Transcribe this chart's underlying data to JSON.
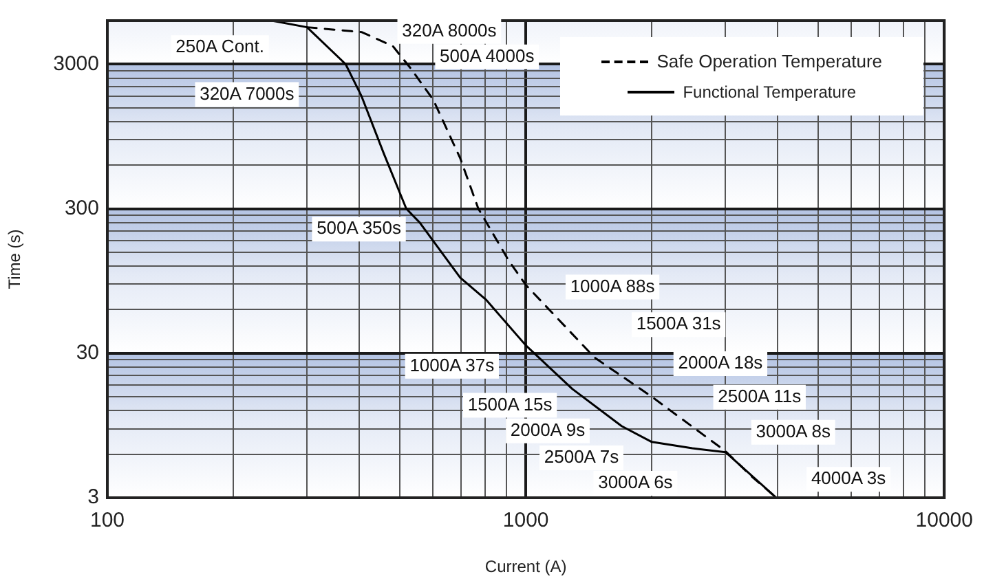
{
  "chart_data": {
    "type": "line",
    "xlabel": "Current (A)",
    "ylabel": "Time (s)",
    "log": "xy",
    "xlim": [
      100,
      10000
    ],
    "ylim": [
      3,
      6000
    ],
    "xticks": [
      100,
      {
        "value": 200,
        "label": null
      },
      {
        "value": 300,
        "label": null
      },
      {
        "value": 400,
        "label": null
      },
      {
        "value": 500,
        "label": null
      },
      {
        "value": 600,
        "label": null
      },
      {
        "value": 700,
        "label": null
      },
      {
        "value": 800,
        "label": null
      },
      {
        "value": 900,
        "label": null
      },
      1000,
      {
        "value": 2000,
        "label": null
      },
      {
        "value": 3000,
        "label": null
      },
      {
        "value": 4000,
        "label": null
      },
      {
        "value": 5000,
        "label": null
      },
      {
        "value": 6000,
        "label": null
      },
      {
        "value": 7000,
        "label": null
      },
      {
        "value": 8000,
        "label": null
      },
      {
        "value": 9000,
        "label": null
      },
      10000
    ],
    "yticks": [
      3,
      {
        "value": 6,
        "label": null
      },
      {
        "value": 9,
        "label": null
      },
      {
        "value": 12,
        "label": null
      },
      {
        "value": 15,
        "label": null
      },
      {
        "value": 18,
        "label": null
      },
      {
        "value": 21,
        "label": null
      },
      {
        "value": 24,
        "label": null
      },
      {
        "value": 27,
        "label": null
      },
      30,
      {
        "value": 60,
        "label": null
      },
      {
        "value": 90,
        "label": null
      },
      {
        "value": 120,
        "label": null
      },
      {
        "value": 150,
        "label": null
      },
      {
        "value": 180,
        "label": null
      },
      {
        "value": 210,
        "label": null
      },
      {
        "value": 240,
        "label": null
      },
      {
        "value": 270,
        "label": null
      },
      300,
      {
        "value": 600,
        "label": null
      },
      {
        "value": 900,
        "label": null
      },
      {
        "value": 1200,
        "label": null
      },
      {
        "value": 1500,
        "label": null
      },
      {
        "value": 1800,
        "label": null
      },
      {
        "value": 2100,
        "label": null
      },
      {
        "value": 2400,
        "label": null
      },
      {
        "value": 2700,
        "label": null
      },
      3000
    ],
    "grid": true,
    "legend": "top right",
    "marker": "none",
    "series": [
      {
        "name": "Safe Operation Temperature",
        "color": "#000000",
        "line_style": "dashed",
        "x": [
          300,
          405,
          481,
          531,
          601,
          697,
          770,
          912,
          1000,
          1460,
          2000,
          3000,
          3470,
          3970
        ],
        "values": [
          5400,
          5000,
          4000,
          2800,
          1700,
          670,
          300,
          130,
          89,
          28,
          15,
          6.3,
          4.2,
          3
        ]
      },
      {
        "name": "Functional Temperature",
        "color": "#000000",
        "line_style": "solid",
        "x": [
          247,
          300,
          371,
          405,
          458,
          518,
          558,
          697,
          805,
          1000,
          1291,
          1694,
          2000,
          2500,
          3000,
          3970
        ],
        "values": [
          6000,
          5400,
          3000,
          1800,
          720,
          300,
          240,
          100,
          70,
          34,
          17,
          9.4,
          7.3,
          6.6,
          6.2,
          3
        ]
      }
    ],
    "annotations": [
      "250A Cont.",
      "320A 7000s",
      "320A 8000s",
      "500A 4000s",
      "500A 350s",
      "1000A 88s",
      "1500A 31s",
      "2000A 18s",
      "2500A 11s",
      "3000A 8s",
      "4000A 3s",
      "1000A 37s",
      "1500A 15s",
      "2000A 9s",
      "2500A 7s",
      "3000A 6s"
    ]
  }
}
